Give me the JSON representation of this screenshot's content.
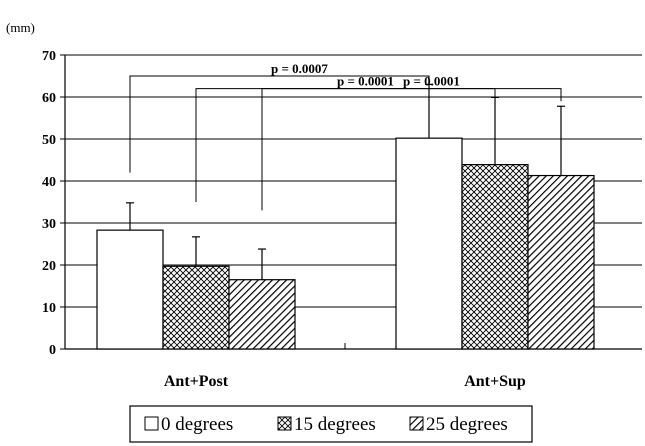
{
  "chart_data": {
    "type": "bar",
    "y_unit": "(mm)",
    "categories": [
      "Ant+Post",
      "Ant+Sup"
    ],
    "series": [
      {
        "name": "0 degrees",
        "values": [
          28.3,
          50.2
        ],
        "errors": [
          6.5,
          12.8
        ],
        "pattern": "none"
      },
      {
        "name": "15 degrees",
        "values": [
          19.7,
          43.9
        ],
        "errors": [
          7.0,
          16.0
        ],
        "pattern": "crosshatch"
      },
      {
        "name": "25 degrees",
        "values": [
          16.5,
          41.3
        ],
        "errors": [
          7.3,
          16.5
        ],
        "pattern": "diagonal"
      }
    ],
    "ylim": [
      0,
      70
    ],
    "yticks": [
      0,
      10,
      20,
      30,
      40,
      50,
      60,
      70
    ],
    "grid": true,
    "legend_position": "bottom",
    "annotations": [
      {
        "text": "p = 0.0007",
        "from_series": 0,
        "from_y": 42,
        "to_y": 65
      },
      {
        "text": "p = 0.0001",
        "from_series": 1,
        "from_y": 35,
        "to_y": 62
      },
      {
        "text": "p = 0.0001",
        "from_series": 2,
        "from_y": 33,
        "to_y": 62
      }
    ],
    "colors": {
      "bar_fill": "#ffffff",
      "stroke": "#000000"
    }
  }
}
